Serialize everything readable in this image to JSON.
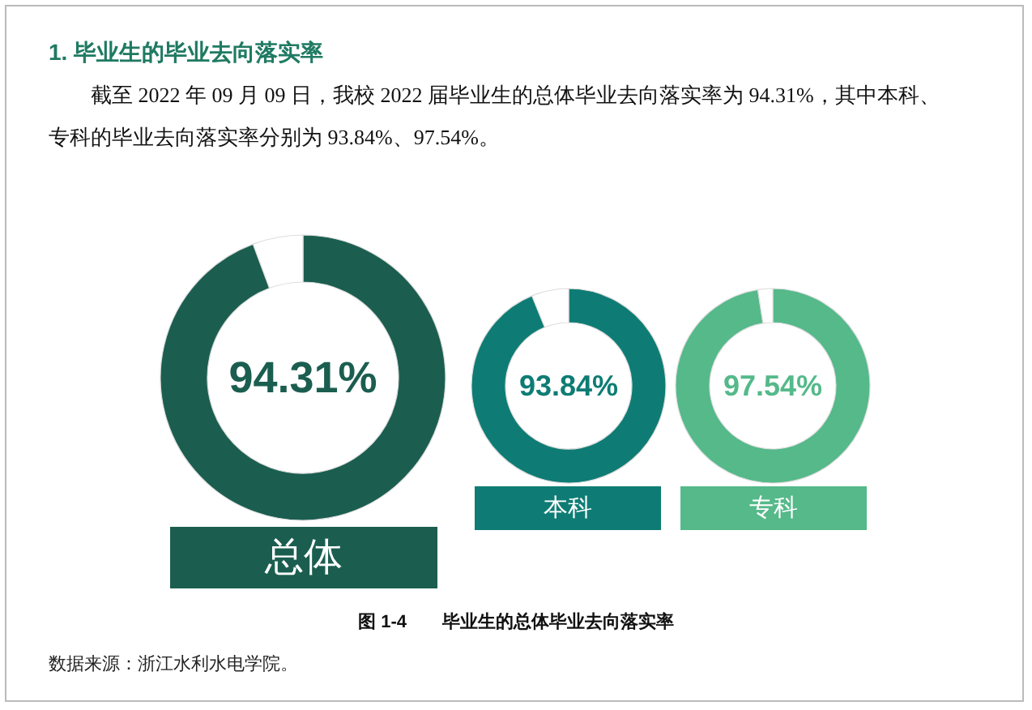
{
  "chart_data": [
    {
      "type": "donut",
      "title": "1. 毕业生的毕业去向落实率",
      "annotations": [
        "截至 2022 年 09 月 09 日，我校 2022 届毕业生的总体毕业去向落实率为 94.31%，其中本科、专科的毕业去向落实率分别为 93.84%、97.54%。",
        "图 1-4　　毕业生的总体毕业去向落实率",
        "数据来源：浙江水利水电学院。"
      ],
      "categories": [
        null,
        null
      ],
      "values": [
        94.31,
        5.69
      ],
      "colors": [
        "#1b5e50",
        "#ffffff"
      ],
      "value_labels": [
        "94.31%",
        null
      ],
      "xlabel": "总体"
    },
    {
      "type": "donut",
      "categories": [
        null,
        null
      ],
      "values": [
        93.84,
        6.16
      ],
      "colors": [
        "#0e7c74",
        "#ffffff"
      ],
      "value_labels": [
        "93.84%",
        null
      ],
      "xlabel": "本科"
    },
    {
      "type": "donut",
      "categories": [
        null,
        null
      ],
      "values": [
        97.54,
        2.46
      ],
      "colors": [
        "#55b98a",
        "#ffffff"
      ],
      "value_labels": [
        "97.54%",
        null
      ],
      "xlabel": "专科"
    }
  ]
}
